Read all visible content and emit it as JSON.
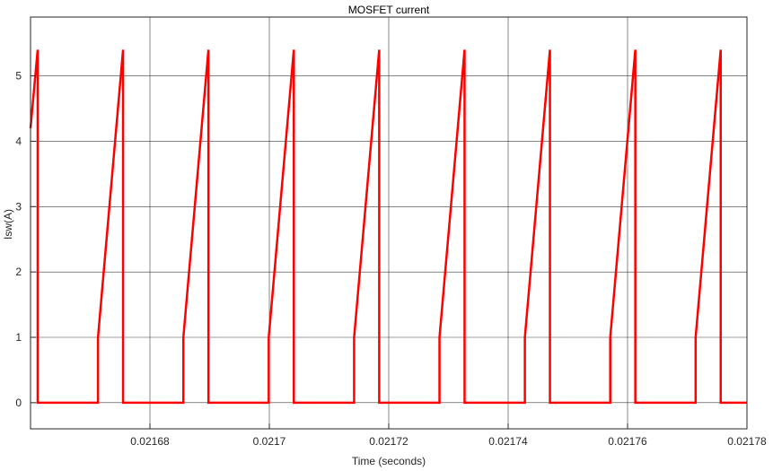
{
  "chart_data": {
    "type": "line",
    "title": "MOSFET current",
    "xlabel": "Time (seconds)",
    "ylabel": "Isw(A)",
    "xlim": [
      0.02166,
      0.02178
    ],
    "ylim": [
      -0.4,
      5.9
    ],
    "x_ticks": [
      0.02168,
      0.0217,
      0.02172,
      0.02174,
      0.02176,
      0.02178
    ],
    "x_tick_labels": [
      "0.02168",
      "0.0217",
      "0.02172",
      "0.02174",
      "0.02176",
      "0.02178"
    ],
    "y_ticks": [
      0,
      1,
      2,
      3,
      4,
      5
    ],
    "y_tick_labels": [
      "0",
      "1",
      "2",
      "3",
      "4",
      "5"
    ],
    "grid": true,
    "series": [
      {
        "color": "#ff0000",
        "points": [
          [
            0.02166,
            4.2
          ],
          [
            0.0216612,
            5.4
          ],
          [
            0.0216612,
            0
          ],
          [
            0.0216713,
            0
          ],
          [
            0.0216713,
            1.0
          ],
          [
            0.0216755,
            5.4
          ],
          [
            0.0216755,
            0
          ],
          [
            0.0216856,
            0
          ],
          [
            0.0216856,
            1.0
          ],
          [
            0.0216898,
            5.4
          ],
          [
            0.0216898,
            0
          ],
          [
            0.0216999,
            0
          ],
          [
            0.0216999,
            1.0
          ],
          [
            0.0217041,
            5.4
          ],
          [
            0.0217041,
            0
          ],
          [
            0.0217142,
            0
          ],
          [
            0.0217142,
            1.0
          ],
          [
            0.0217184,
            5.4
          ],
          [
            0.0217184,
            0
          ],
          [
            0.0217285,
            0
          ],
          [
            0.0217285,
            1.0
          ],
          [
            0.0217327,
            5.4
          ],
          [
            0.0217327,
            0
          ],
          [
            0.0217428,
            0
          ],
          [
            0.0217428,
            1.0
          ],
          [
            0.021747,
            5.4
          ],
          [
            0.021747,
            0
          ],
          [
            0.0217571,
            0
          ],
          [
            0.0217571,
            1.0
          ],
          [
            0.0217613,
            5.4
          ],
          [
            0.0217613,
            0
          ],
          [
            0.0217714,
            0
          ],
          [
            0.0217714,
            1.0
          ],
          [
            0.0217756,
            5.4
          ],
          [
            0.0217756,
            0
          ],
          [
            0.02178,
            0
          ]
        ]
      }
    ]
  }
}
